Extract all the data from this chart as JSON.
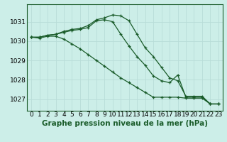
{
  "title": "Graphe pression niveau de la mer (hPa)",
  "background_color": "#cceee8",
  "grid_color": "#b8ddd8",
  "line_color": "#1a5c2a",
  "xlim": [
    -0.5,
    23.5
  ],
  "ylim": [
    1026.4,
    1031.9
  ],
  "xticks": [
    0,
    1,
    2,
    3,
    4,
    5,
    6,
    7,
    8,
    9,
    10,
    11,
    12,
    13,
    14,
    15,
    16,
    17,
    18,
    19,
    20,
    21,
    22,
    23
  ],
  "yticks": [
    1027,
    1028,
    1029,
    1030,
    1031
  ],
  "line1": [
    1030.2,
    1030.2,
    1030.3,
    1030.35,
    1030.5,
    1030.6,
    1030.65,
    1030.8,
    1031.1,
    1031.2,
    1031.35,
    1031.3,
    1031.05,
    1030.35,
    1029.65,
    1029.2,
    1028.65,
    1028.1,
    1027.95,
    1027.15,
    1027.15,
    1027.15,
    1026.75,
    1026.75
  ],
  "line2": [
    1030.2,
    1030.2,
    1030.3,
    1030.35,
    1030.45,
    1030.55,
    1030.6,
    1030.7,
    1031.05,
    1031.1,
    1031.0,
    1030.35,
    1029.75,
    1029.2,
    1028.75,
    1028.2,
    1027.95,
    1027.85,
    1028.25,
    1027.1,
    1027.1,
    1027.1,
    1026.75,
    1026.75
  ],
  "line3": [
    1030.2,
    1030.15,
    1030.25,
    1030.25,
    1030.1,
    1029.85,
    1029.6,
    1029.3,
    1029.0,
    1028.7,
    1028.4,
    1028.1,
    1027.85,
    1027.6,
    1027.35,
    1027.1,
    1027.1,
    1027.1,
    1027.1,
    1027.05,
    1027.05,
    1027.05,
    1026.75,
    1026.75
  ],
  "xlabel_fontsize": 6.5,
  "ylabel_fontsize": 6.5,
  "title_fontsize": 7.5
}
